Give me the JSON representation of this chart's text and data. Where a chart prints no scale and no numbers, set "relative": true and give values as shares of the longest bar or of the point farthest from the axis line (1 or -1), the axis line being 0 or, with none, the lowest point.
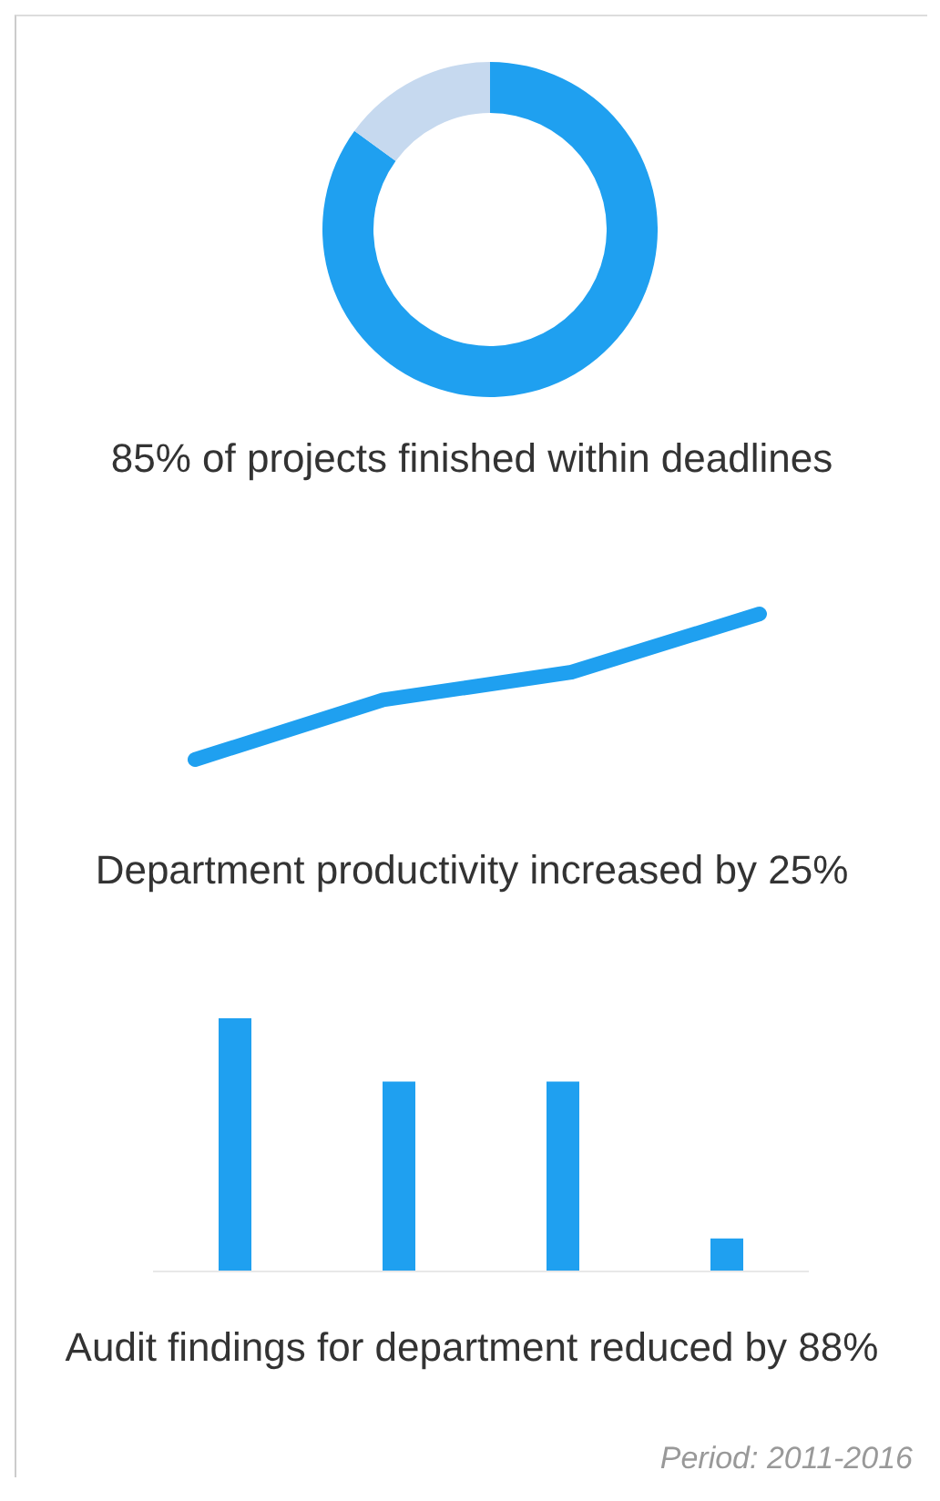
{
  "chart_data": [
    {
      "type": "donut",
      "title": "85% of projects finished within deadlines",
      "categories": [
        null,
        null
      ],
      "values": [
        85,
        15
      ],
      "colors": [
        "#1fa0f0",
        "#c6d9ef"
      ]
    },
    {
      "type": "line",
      "title": "Department productivity increased by 25%",
      "relative": true,
      "categories": [
        null,
        null,
        null,
        null
      ],
      "series": [
        {
          "color": "#1fa0f0",
          "values": [
            0,
            0.41,
            0.6,
            1
          ]
        }
      ]
    },
    {
      "type": "bar",
      "title": "Audit findings for department reduced by 88%",
      "relative": true,
      "categories": [
        null,
        null,
        null,
        null
      ],
      "series": [
        {
          "color": "#1fa0f0",
          "values": [
            1,
            0.75,
            0.75,
            0.13
          ]
        }
      ],
      "annotations": [
        "Period: 2011-2016"
      ]
    }
  ]
}
